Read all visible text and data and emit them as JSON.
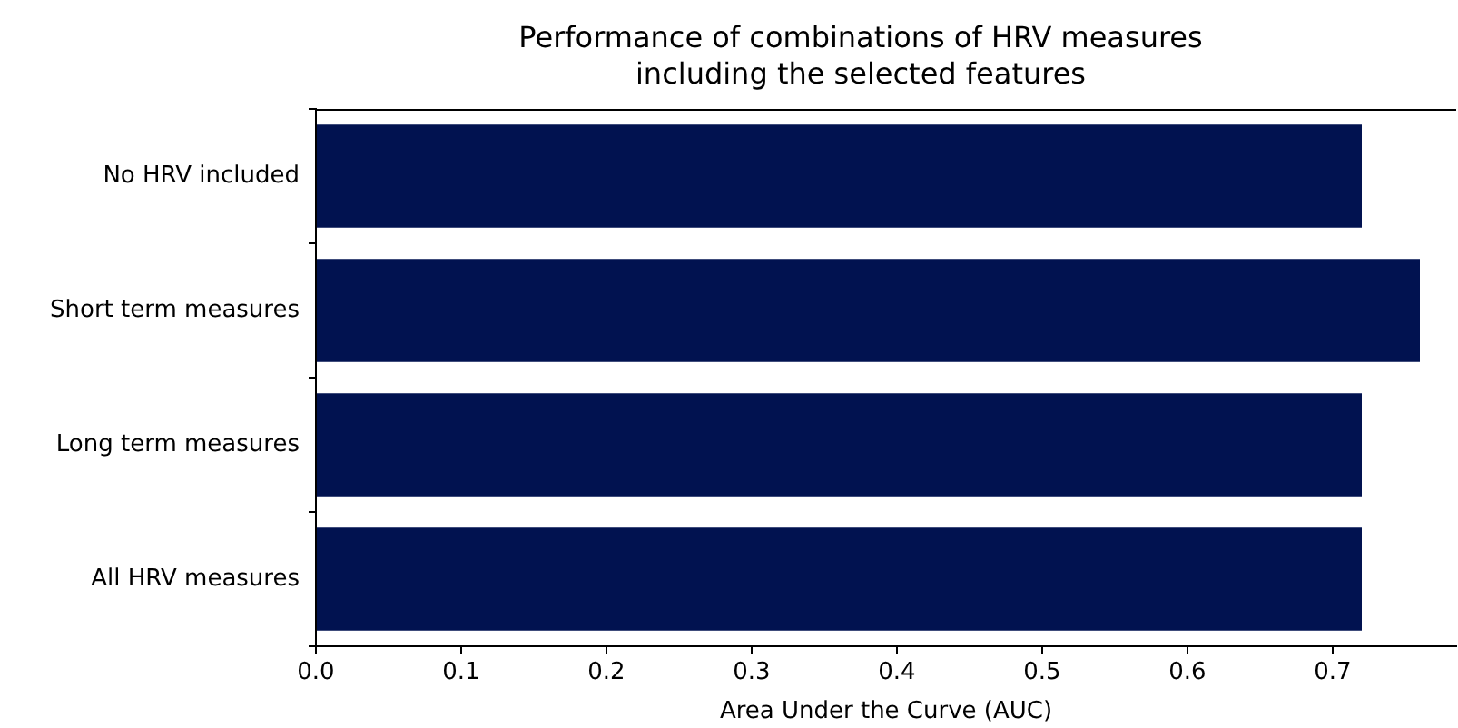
{
  "chart_data": {
    "type": "bar",
    "orientation": "horizontal",
    "title": "Performance of combinations of HRV measures\nincluding the selected features",
    "xlabel": "Area Under the Curve (AUC)",
    "categories": [
      "No HRV included",
      "Short term measures",
      "Long term measures",
      "All HRV measures"
    ],
    "values": [
      0.72,
      0.76,
      0.72,
      0.72
    ],
    "color": "#011250",
    "xlim": [
      0,
      0.785
    ],
    "xticks": [
      {
        "value": 0,
        "label": "0.0"
      },
      0.1,
      0.2,
      0.3,
      0.4,
      0.5,
      0.6,
      0.7
    ],
    "grid": false,
    "legend": false
  }
}
